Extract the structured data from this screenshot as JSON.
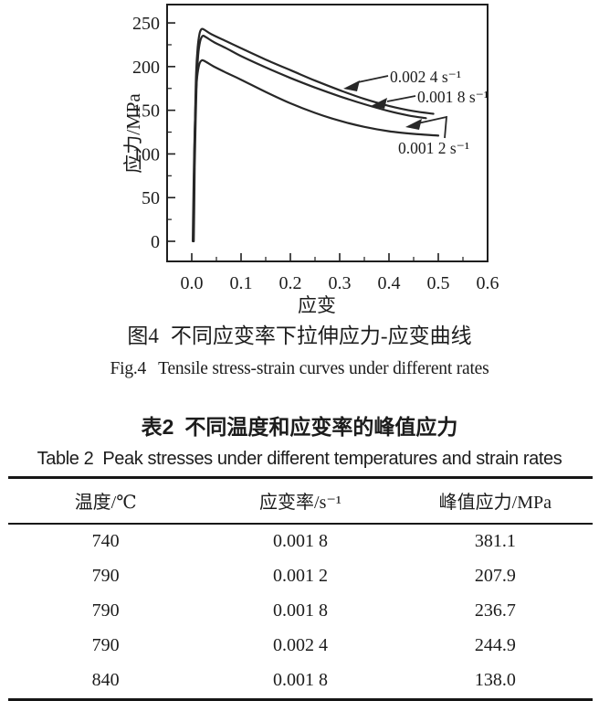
{
  "figure": {
    "caption_zh": {
      "label": "图4",
      "text": "不同应变率下拉伸应力-应变曲线"
    },
    "caption_en": {
      "label": "Fig.4",
      "text": "Tensile stress-strain curves under different rates"
    }
  },
  "chart_data": {
    "type": "line",
    "title": "",
    "xlabel": "应变",
    "ylabel": "应力/MPa",
    "xlim": [
      -0.05,
      0.6
    ],
    "ylim": [
      -23,
      271
    ],
    "grid": false,
    "legend_position": "inline-annotations",
    "x_ticks": [
      0,
      0.1,
      0.2,
      0.3,
      0.4,
      0.5,
      0.6
    ],
    "x_tick_labels": [
      "0.0",
      "0.1",
      "0.2",
      "0.3",
      "0.4",
      "0.5",
      "0.6"
    ],
    "x_minor_ticks": [
      0.05,
      0.15,
      0.25,
      0.35,
      0.45,
      0.55
    ],
    "y_ticks": [
      0,
      50,
      100,
      150,
      200,
      250
    ],
    "y_tick_labels": [
      "0",
      "50",
      "100",
      "150",
      "200",
      "250"
    ],
    "y_minor_ticks": [
      25,
      75,
      125,
      175,
      225
    ],
    "series": [
      {
        "name": "0.002 4 s⁻¹",
        "peak_stress_mpa": 244.9,
        "points": [
          [
            0.003,
            0
          ],
          [
            0.004,
            40
          ],
          [
            0.005,
            90
          ],
          [
            0.007,
            150
          ],
          [
            0.009,
            195
          ],
          [
            0.012,
            222
          ],
          [
            0.016,
            238
          ],
          [
            0.02,
            243
          ],
          [
            0.026,
            242
          ],
          [
            0.04,
            237
          ],
          [
            0.07,
            229
          ],
          [
            0.1,
            221
          ],
          [
            0.15,
            208
          ],
          [
            0.2,
            196
          ],
          [
            0.25,
            184
          ],
          [
            0.3,
            173
          ],
          [
            0.35,
            163
          ],
          [
            0.4,
            155
          ],
          [
            0.45,
            149
          ],
          [
            0.49,
            146
          ]
        ]
      },
      {
        "name": "0.001 8 s⁻¹",
        "peak_stress_mpa": 236.7,
        "points": [
          [
            0.004,
            0
          ],
          [
            0.005,
            38
          ],
          [
            0.006,
            85
          ],
          [
            0.008,
            140
          ],
          [
            0.01,
            185
          ],
          [
            0.013,
            213
          ],
          [
            0.017,
            229
          ],
          [
            0.022,
            235
          ],
          [
            0.028,
            234
          ],
          [
            0.045,
            228
          ],
          [
            0.07,
            221
          ],
          [
            0.1,
            212
          ],
          [
            0.15,
            199
          ],
          [
            0.2,
            187
          ],
          [
            0.25,
            176
          ],
          [
            0.3,
            166
          ],
          [
            0.35,
            157
          ],
          [
            0.4,
            149
          ],
          [
            0.44,
            144
          ],
          [
            0.475,
            141
          ]
        ]
      },
      {
        "name": "0.001 2 s⁻¹",
        "peak_stress_mpa": 207.9,
        "points": [
          [
            0.002,
            0
          ],
          [
            0.003,
            35
          ],
          [
            0.004,
            75
          ],
          [
            0.006,
            125
          ],
          [
            0.008,
            163
          ],
          [
            0.011,
            188
          ],
          [
            0.015,
            202
          ],
          [
            0.02,
            207
          ],
          [
            0.027,
            206
          ],
          [
            0.045,
            200
          ],
          [
            0.07,
            193
          ],
          [
            0.1,
            185
          ],
          [
            0.15,
            171
          ],
          [
            0.2,
            158
          ],
          [
            0.25,
            147
          ],
          [
            0.3,
            138
          ],
          [
            0.35,
            131
          ],
          [
            0.4,
            126
          ],
          [
            0.45,
            123
          ],
          [
            0.5,
            121
          ]
        ]
      }
    ]
  },
  "table": {
    "title_zh": {
      "label": "表2",
      "text": "不同温度和应变率的峰值应力"
    },
    "title_en": {
      "label": "Table 2",
      "text": "Peak stresses under different temperatures and strain rates"
    },
    "columns": [
      "温度/℃",
      "应变率/s⁻¹",
      "峰值应力/MPa"
    ],
    "rows": [
      [
        "740",
        "0.001 8",
        "381.1"
      ],
      [
        "790",
        "0.001 2",
        "207.9"
      ],
      [
        "790",
        "0.001 8",
        "236.7"
      ],
      [
        "790",
        "0.002 4",
        "244.9"
      ],
      [
        "840",
        "0.001 8",
        "138.0"
      ]
    ]
  },
  "colors": {
    "ink": "#1c1c1c",
    "background": "#ffffff"
  }
}
